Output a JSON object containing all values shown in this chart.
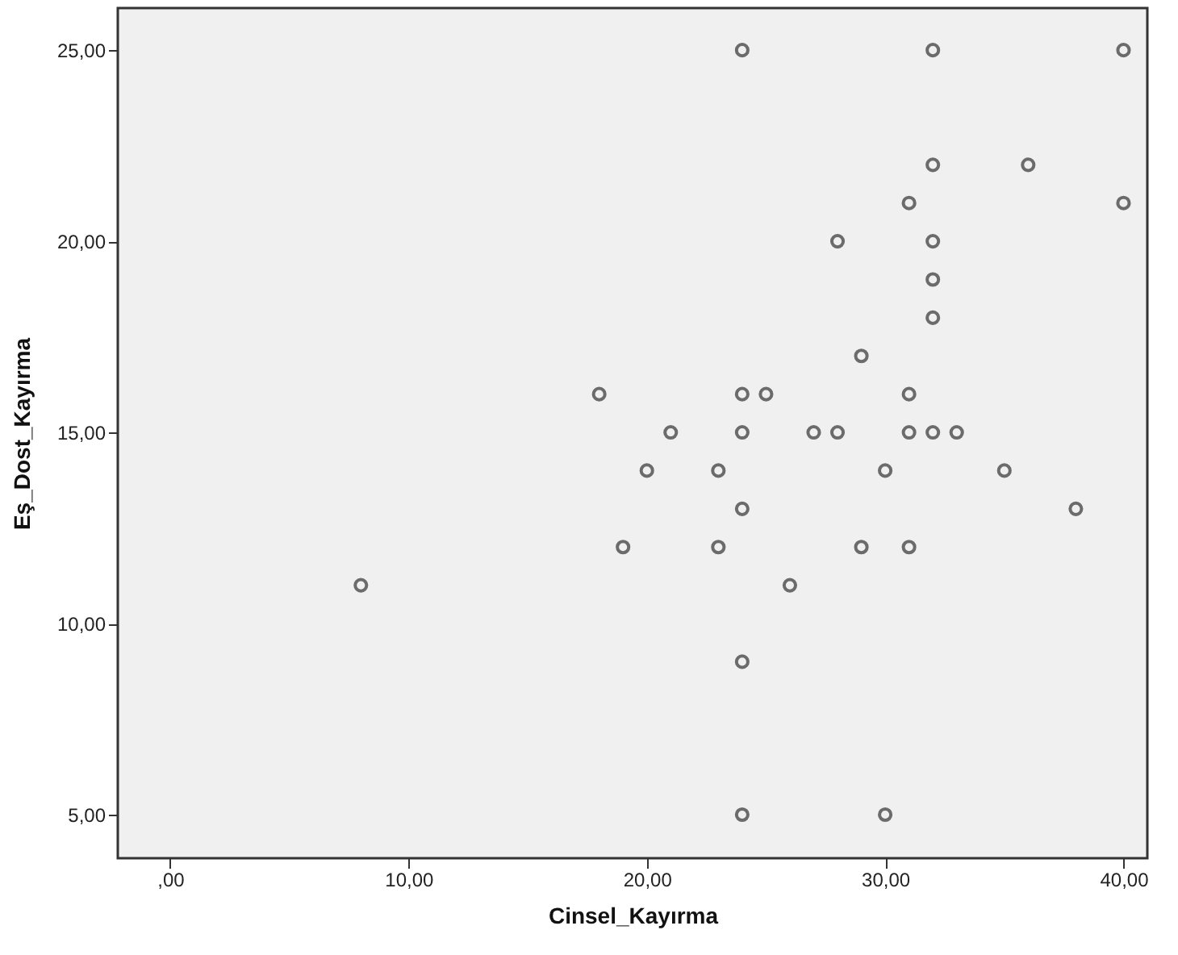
{
  "chart_data": {
    "type": "scatter",
    "xlabel": "Cinsel_Kayırma",
    "ylabel": "Eş_Dost_Kayırma",
    "marker": "circle",
    "grid": false,
    "xlim": [
      -2.2,
      41
    ],
    "ylim": [
      3.86,
      26.1
    ],
    "xticks": [
      {
        "value": 0,
        "label": ",00"
      },
      {
        "value": 10,
        "label": "10,00"
      },
      {
        "value": 20,
        "label": "20,00"
      },
      {
        "value": 30,
        "label": "30,00"
      },
      {
        "value": 40,
        "label": "40,00"
      }
    ],
    "yticks": [
      {
        "value": 5,
        "label": "5,00"
      },
      {
        "value": 10,
        "label": "10,00"
      },
      {
        "value": 15,
        "label": "15,00"
      },
      {
        "value": 20,
        "label": "20,00"
      },
      {
        "value": 25,
        "label": "25,00"
      }
    ],
    "series": [
      {
        "color": "#333333",
        "x": [
          24,
          32,
          40,
          32,
          36,
          31,
          40,
          28,
          32,
          32,
          32,
          29,
          18,
          24,
          25,
          31,
          21,
          24,
          27,
          28,
          31,
          32,
          33,
          20,
          23,
          30,
          35,
          24,
          38,
          19,
          23,
          29,
          31,
          8,
          26,
          24,
          24,
          30
        ],
        "values": [
          25,
          25,
          25,
          22,
          22,
          21,
          21,
          20,
          20,
          19,
          18,
          17,
          16,
          16,
          16,
          16,
          15,
          15,
          15,
          15,
          15,
          15,
          15,
          14,
          14,
          14,
          14,
          13,
          13,
          12,
          12,
          12,
          12,
          11,
          11,
          9,
          5,
          5
        ]
      }
    ]
  }
}
